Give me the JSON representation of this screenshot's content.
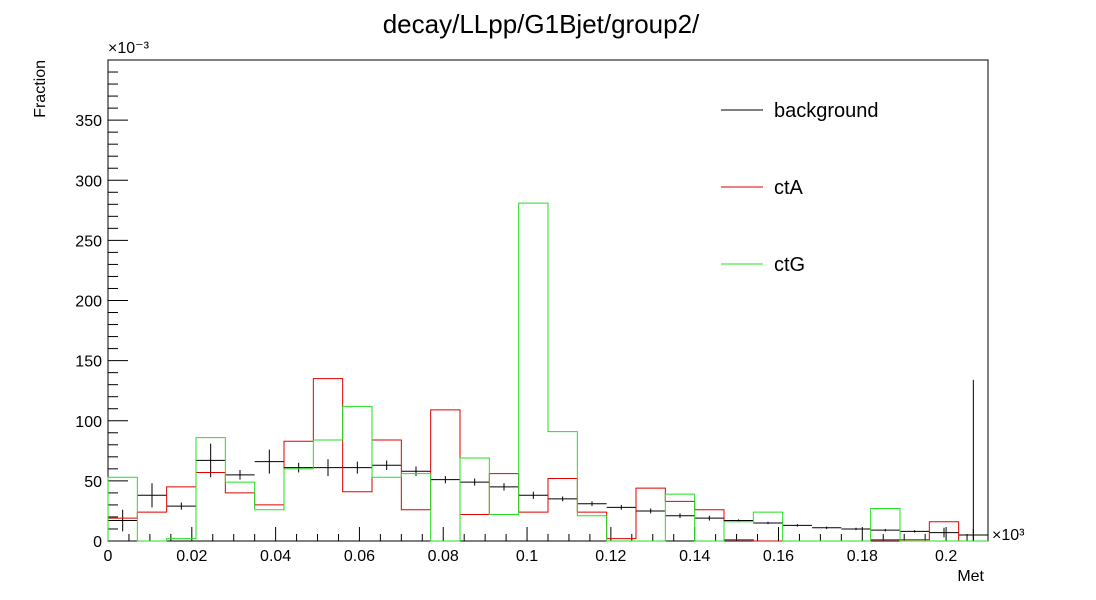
{
  "chart_data": {
    "type": "histogram",
    "title": "decay/LLpp/G1Bjet/group2/",
    "xlabel": "Met",
    "ylabel": "Fraction",
    "x_exponent": "×10³",
    "y_exponent": "×10⁻³",
    "xlim": [
      0,
      0.21
    ],
    "ylim": [
      0,
      400
    ],
    "x_ticks": [
      0,
      0.02,
      0.04,
      0.06,
      0.08,
      0.1,
      0.12,
      0.14,
      0.16,
      0.18,
      0.2
    ],
    "x_tick_labels": [
      "0",
      "0.02",
      "0.04",
      "0.06",
      "0.08",
      "0.1",
      "0.12",
      "0.14",
      "0.16",
      "0.18",
      "0.2"
    ],
    "y_ticks": [
      0,
      50,
      100,
      150,
      200,
      250,
      300,
      350
    ],
    "y_tick_labels": [
      "0",
      "50",
      "100",
      "150",
      "200",
      "250",
      "300",
      "350"
    ],
    "bin_edges": [
      0,
      0.007,
      0.014,
      0.021,
      0.028,
      0.035,
      0.042,
      0.049,
      0.056,
      0.063,
      0.07,
      0.077,
      0.084,
      0.091,
      0.098,
      0.105,
      0.112,
      0.119,
      0.126,
      0.133,
      0.14,
      0.147,
      0.154,
      0.161,
      0.168,
      0.175,
      0.182,
      0.189,
      0.196,
      0.203,
      0.21
    ],
    "legend_position": "top-right",
    "series": [
      {
        "name": "background",
        "color": "#000000",
        "style": "errorbar",
        "values": [
          17,
          38,
          29,
          67,
          55,
          66,
          61,
          61,
          61,
          63,
          58,
          51,
          49,
          45,
          38,
          35,
          31,
          28,
          25,
          21,
          19,
          17,
          15,
          13,
          11,
          10,
          9,
          8,
          7,
          5
        ],
        "errors": [
          9,
          10,
          3,
          14,
          4,
          10,
          4,
          7,
          5,
          4,
          4,
          3,
          3,
          3,
          3,
          2,
          2,
          2,
          2,
          2,
          2,
          1,
          1,
          1,
          1,
          1,
          1,
          1,
          4,
          5
        ],
        "spike": {
          "x": 0.2065,
          "value": 134
        }
      },
      {
        "name": "ctA",
        "color": "#e00000",
        "style": "step",
        "values": [
          19,
          24,
          45,
          57,
          40,
          30,
          83,
          135,
          41,
          84,
          26,
          109,
          22,
          56,
          24,
          52,
          24,
          2,
          44,
          33,
          26,
          1,
          0,
          0,
          0,
          0,
          1,
          1,
          16,
          0
        ]
      },
      {
        "name": "ctG",
        "color": "#22e022",
        "style": "step",
        "values": [
          53,
          0,
          2,
          86,
          49,
          26,
          60,
          84,
          112,
          53,
          56,
          0,
          69,
          22,
          281,
          91,
          21,
          0,
          0,
          39,
          0,
          16,
          24,
          0,
          0,
          0,
          27,
          0,
          0,
          0
        ]
      }
    ]
  }
}
